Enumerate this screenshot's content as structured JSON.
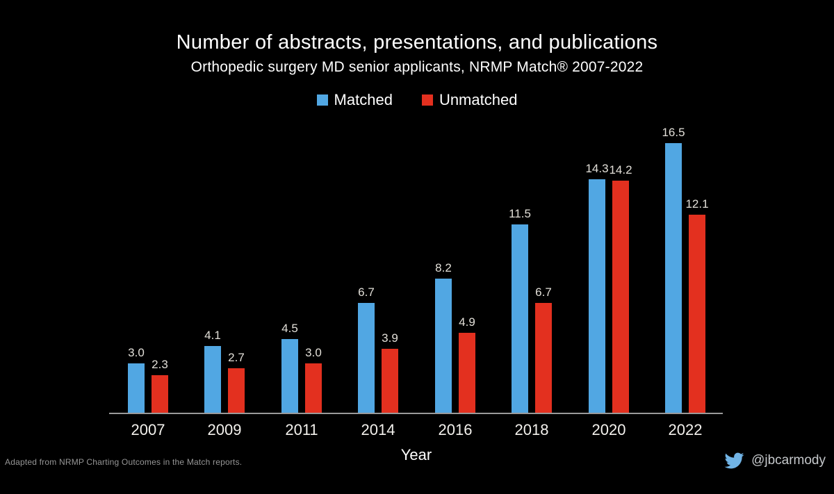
{
  "slide": {
    "background": "#000000",
    "title": "Number of abstracts, presentations, and publications",
    "subtitle": "Orthopedic surgery MD senior applicants, NRMP Match® 2007-2022"
  },
  "chart_data": {
    "type": "bar",
    "title": "Number of abstracts, presentations, and publications",
    "subtitle": "Orthopedic surgery MD senior applicants, NRMP Match® 2007-2022",
    "categories": [
      "2007",
      "2009",
      "2011",
      "2014",
      "2016",
      "2018",
      "2020",
      "2022"
    ],
    "series": [
      {
        "name": "Matched",
        "color": "#51a7e3",
        "values": [
          3.0,
          4.1,
          4.5,
          6.7,
          8.2,
          11.5,
          14.3,
          16.5
        ]
      },
      {
        "name": "Unmatched",
        "color": "#e3301f",
        "values": [
          2.3,
          2.7,
          3.0,
          3.9,
          4.9,
          6.7,
          14.2,
          12.1
        ]
      }
    ],
    "xlabel": "Year",
    "ylabel": "",
    "ylim": [
      0,
      17
    ],
    "grid": false,
    "yaxis_visible": false,
    "legend_position": "top-center",
    "value_labels": true,
    "value_label_decimals": 1
  },
  "legend": {
    "items": [
      {
        "label": "Matched",
        "color": "#51a7e3"
      },
      {
        "label": "Unmatched",
        "color": "#e3301f"
      }
    ]
  },
  "xaxis": {
    "label": "Year",
    "line_color": "#9a9a9a",
    "tick_color": "#f3f1ed"
  },
  "colors": {
    "title_text": "#ffffff",
    "value_label": "#e2dfd8",
    "source_text": "#969696",
    "handle_text": "#c6c9cc",
    "twitter_blue": "#71b4e6"
  },
  "footer": {
    "source": "Adapted from NRMP Charting Outcomes in the Match reports.",
    "twitter_handle": "@jbcarmody",
    "twitter_icon": "twitter-bird-icon"
  }
}
